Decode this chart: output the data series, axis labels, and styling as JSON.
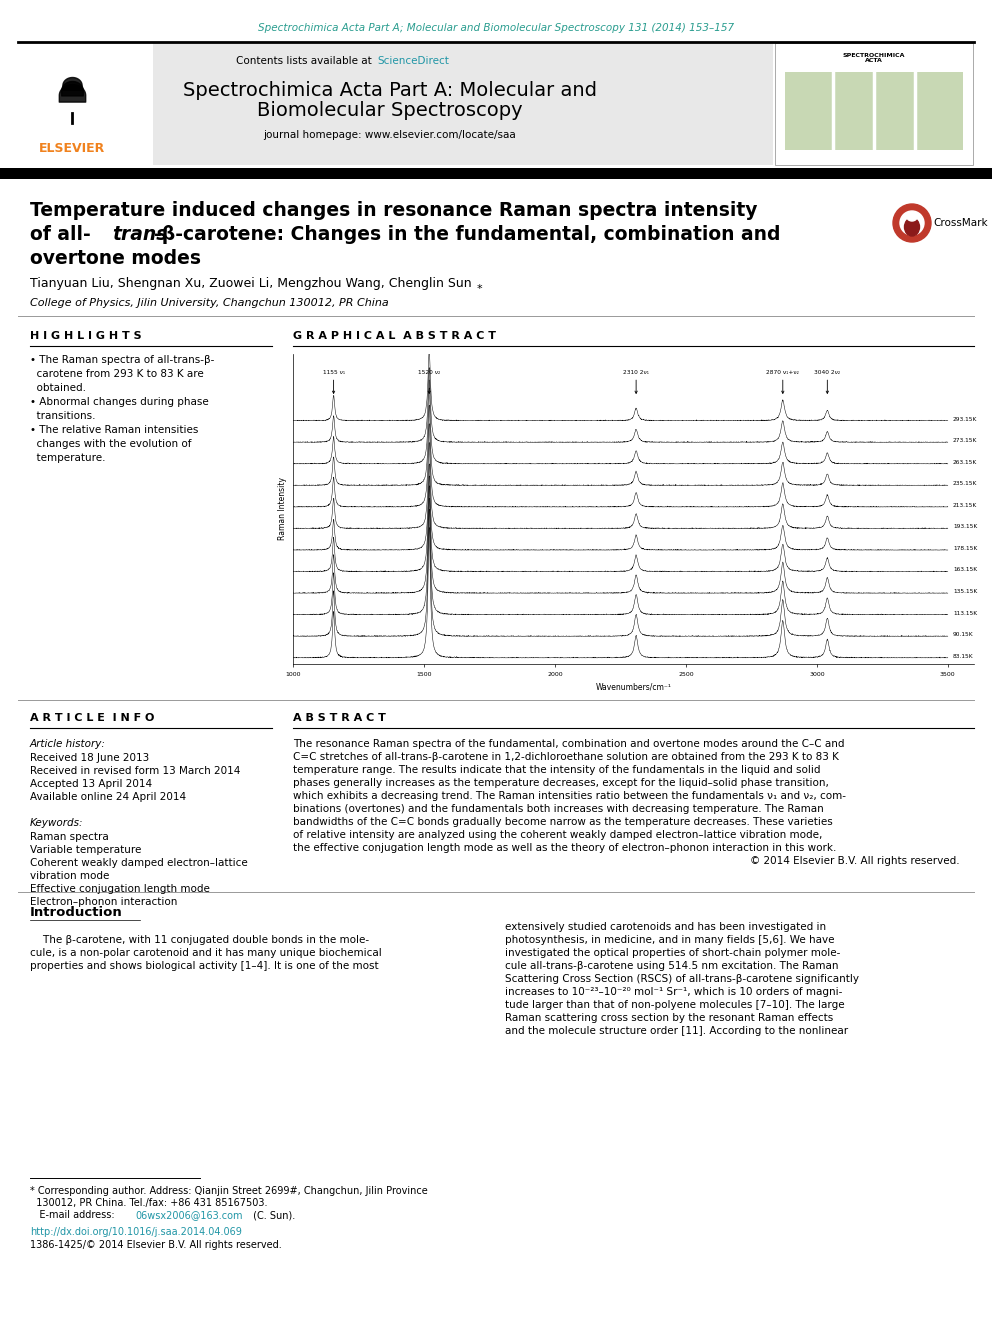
{
  "journal_header_text": "Spectrochimica Acta Part A; Molecular and Biomolecular Spectroscopy 131 (2014) 153–157",
  "journal_name_line1": "Spectrochimica Acta Part A: Molecular and",
  "journal_name_line2": "Biomolecular Spectroscopy",
  "journal_homepage": "journal homepage: www.elsevier.com/locate/saa",
  "sciencedirect": "ScienceDirect",
  "title_line1": "Temperature induced changes in resonance Raman spectra intensity",
  "title_line2a": "of all-",
  "title_line2b": "trans",
  "title_line2c": "-β-carotene: Changes in the fundamental, combination and",
  "title_line3": "overtone modes",
  "authors": "Tianyuan Liu, Shengnan Xu, Zuowei Li, Mengzhou Wang, Chenglin Sun ",
  "author_star": "*",
  "affiliation": "College of Physics, Jilin University, Changchun 130012, PR China",
  "highlights_title": "H I G H L I G H T S",
  "graphical_abstract_title": "G R A P H I C A L  A B S T R A C T",
  "graph_xlabel": "Wavenumbers/cm⁻¹",
  "graph_ylabel": "Raman Intensity",
  "graph_peak_labels": [
    "1155 ν₁",
    "1520 ν₂",
    "2310 2ν₁",
    "2870 ν₁+ν₂",
    "3040 2ν₂"
  ],
  "graph_peak_positions": [
    1155,
    1520,
    2310,
    2870,
    3040
  ],
  "graph_temps": [
    "293.15K",
    "273.15K",
    "263.15K",
    "235.15K",
    "213.15K",
    "193.15K",
    "178.15K",
    "163.15K",
    "135.15K",
    "113.15K",
    "90.15K",
    "83.15K"
  ],
  "article_info_title": "A R T I C L E  I N F O",
  "article_history_title": "Article history:",
  "article_history": [
    "Received 18 June 2013",
    "Received in revised form 13 March 2014",
    "Accepted 13 April 2014",
    "Available online 24 April 2014"
  ],
  "keywords_title": "Keywords:",
  "keywords": [
    "Raman spectra",
    "Variable temperature",
    "Coherent weakly damped electron–lattice",
    "vibration mode",
    "Effective conjugation length mode",
    "Electron–phonon interaction"
  ],
  "abstract_title": "A B S T R A C T",
  "abstract_lines": [
    "The resonance Raman spectra of the fundamental, combination and overtone modes around the C–C and",
    "C=C stretches of all-trans-β-carotene in 1,2-dichloroethane solution are obtained from the 293 K to 83 K",
    "temperature range. The results indicate that the intensity of the fundamentals in the liquid and solid",
    "phases generally increases as the temperature decreases, except for the liquid–solid phase transition,",
    "which exhibits a decreasing trend. The Raman intensities ratio between the fundamentals ν₁ and ν₂, com-",
    "binations (overtones) and the fundamentals both increases with decreasing temperature. The Raman",
    "bandwidths of the C=C bonds gradually become narrow as the temperature decreases. These varieties",
    "of relative intensity are analyzed using the coherent weakly damped electron–lattice vibration mode,",
    "the effective conjugation length mode as well as the theory of electron–phonon interaction in this work.",
    "© 2014 Elsevier B.V. All rights reserved."
  ],
  "intro_title": "Introduction",
  "intro_lines_left": [
    "    The β-carotene, with 11 conjugated double bonds in the mole-",
    "cule, is a non-polar carotenoid and it has many unique biochemical",
    "properties and shows biological activity [1–4]. It is one of the most"
  ],
  "intro_lines_right": [
    "extensively studied carotenoids and has been investigated in",
    "photosynthesis, in medicine, and in many fields [5,6]. We have",
    "investigated the optical properties of short-chain polymer mole-",
    "cule all-trans-β-carotene using 514.5 nm excitation. The Raman",
    "Scattering Cross Section (RSCS) of all-trans-β-carotene significantly",
    "increases to 10⁻²³–10⁻²⁰ mol⁻¹ Sr⁻¹, which is 10 orders of magni-",
    "tude larger than that of non-polyene molecules [7–10]. The large",
    "Raman scattering cross section by the resonant Raman effects",
    "and the molecule structure order [11]. According to the nonlinear"
  ],
  "footnote_line1": "* Corresponding author. Address: Qianjin Street 2699#, Changchun, Jilin Province",
  "footnote_line2": "  130012, PR China. Tel./fax: +86 431 85167503.",
  "footnote_email_pre": "   E-mail address: ",
  "footnote_email": "06wsx2006@163.com",
  "footnote_email_post": " (C. Sun).",
  "doi_text": "http://dx.doi.org/10.1016/j.saa.2014.04.069",
  "issn_text": "1386-1425/© 2014 Elsevier B.V. All rights reserved.",
  "bg_color": "#ffffff",
  "journal_header_color": "#2a9d8f",
  "link_color": "#2196a6",
  "header_bg_color": "#e8e8e8",
  "elsevier_color": "#f0821e",
  "highlights_lines": [
    "• The Raman spectra of all-trans-β-",
    "  carotene from 293 K to 83 K are",
    "  obtained.",
    "• Abnormal changes during phase",
    "  transitions.",
    "• The relative Raman intensities",
    "  changes with the evolution of",
    "  temperature."
  ]
}
